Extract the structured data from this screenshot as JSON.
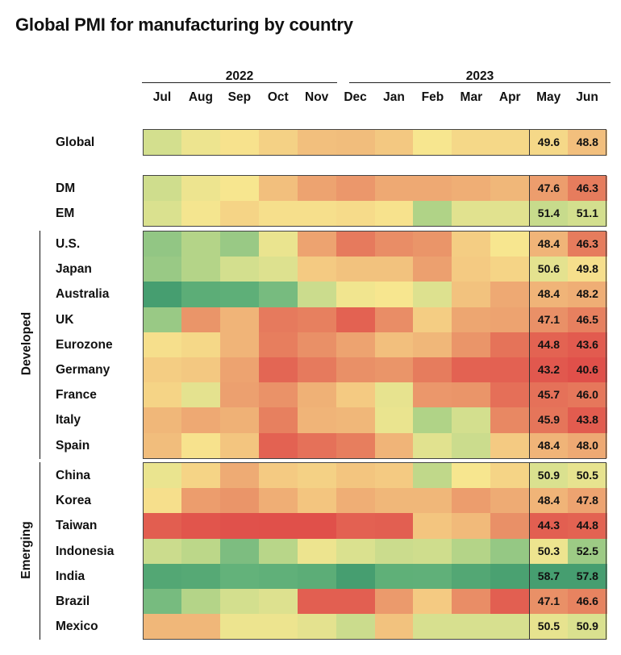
{
  "chart_data": {
    "type": "heatmap",
    "title": "Global PMI for manufacturing by country",
    "year_headers": [
      {
        "label": "2022",
        "months": [
          "Jul",
          "Aug",
          "Sep",
          "Oct",
          "Nov",
          "Dec"
        ]
      },
      {
        "label": "2023",
        "months": [
          "Jan",
          "Feb",
          "Mar",
          "Apr",
          "May",
          "Jun"
        ]
      }
    ],
    "columns": [
      "Jul",
      "Aug",
      "Sep",
      "Oct",
      "Nov",
      "Dec",
      "Jan",
      "Feb",
      "Mar",
      "Apr",
      "May",
      "Jun"
    ],
    "labeled_columns": [
      "May",
      "Jun"
    ],
    "color_scale": {
      "low": "#e0504a",
      "mid": "#f7e68f",
      "high": "#469e70",
      "stops": [
        {
          "value": 42.0,
          "color": "#e0504a"
        },
        {
          "value": 45.0,
          "color": "#e36453"
        },
        {
          "value": 46.5,
          "color": "#e7805f"
        },
        {
          "value": 47.5,
          "color": "#eb9a6c"
        },
        {
          "value": 48.5,
          "color": "#f0b779"
        },
        {
          "value": 49.3,
          "color": "#f4cd83"
        },
        {
          "value": 50.0,
          "color": "#f7e68f"
        },
        {
          "value": 51.0,
          "color": "#d7e08f"
        },
        {
          "value": 52.0,
          "color": "#b0d387"
        },
        {
          "value": 53.0,
          "color": "#8ac383"
        },
        {
          "value": 55.0,
          "color": "#64b37a"
        },
        {
          "value": 57.5,
          "color": "#469e70"
        }
      ]
    },
    "groups": [
      {
        "name": "",
        "rows": [
          {
            "label": "Global",
            "values": [
              51.1,
              50.3,
              49.9,
              49.4,
              48.8,
              48.7,
              49.1,
              50.0,
              49.6,
              49.6,
              49.6,
              48.8
            ]
          }
        ]
      },
      {
        "name": "",
        "rows": [
          {
            "label": "DM",
            "values": [
              51.2,
              50.3,
              50.0,
              48.8,
              47.8,
              47.4,
              48.0,
              48.0,
              48.2,
              48.5,
              47.6,
              46.3
            ]
          },
          {
            "label": "EM",
            "values": [
              50.9,
              50.1,
              49.5,
              49.8,
              49.8,
              49.7,
              49.9,
              52.0,
              50.7,
              50.7,
              51.4,
              51.1
            ]
          }
        ]
      },
      {
        "name": "Developed",
        "rows": [
          {
            "label": "U.S.",
            "values": [
              52.8,
              51.9,
              52.6,
              50.4,
              47.8,
              46.2,
              47.0,
              47.3,
              49.3,
              50.0,
              48.4,
              46.3
            ]
          },
          {
            "label": "Japan",
            "values": [
              52.6,
              51.9,
              51.1,
              50.8,
              49.2,
              48.9,
              48.9,
              47.7,
              49.2,
              49.5,
              50.6,
              49.8
            ]
          },
          {
            "label": "Australia",
            "values": [
              57.8,
              55.7,
              55.5,
              54.0,
              51.3,
              50.2,
              50.0,
              50.8,
              48.9,
              48.0,
              48.4,
              48.2
            ]
          },
          {
            "label": "UK",
            "values": [
              52.6,
              47.3,
              48.4,
              46.2,
              46.5,
              44.7,
              47.0,
              49.3,
              47.9,
              47.8,
              47.1,
              46.5
            ]
          },
          {
            "label": "Eurozone",
            "values": [
              49.8,
              49.6,
              48.4,
              46.4,
              47.1,
              47.8,
              48.8,
              48.5,
              47.3,
              45.8,
              44.8,
              43.6
            ]
          },
          {
            "label": "Germany",
            "values": [
              49.3,
              49.1,
              47.8,
              45.1,
              46.2,
              47.1,
              47.3,
              46.3,
              44.7,
              44.5,
              43.2,
              40.6
            ]
          },
          {
            "label": "France",
            "values": [
              49.5,
              50.6,
              47.7,
              47.2,
              48.3,
              49.2,
              50.5,
              47.4,
              47.3,
              45.6,
              45.7,
              46.0
            ]
          },
          {
            "label": "Italy",
            "values": [
              48.5,
              48.0,
              48.3,
              46.5,
              48.4,
              48.5,
              50.4,
              52.0,
              51.1,
              46.8,
              45.9,
              43.8
            ]
          },
          {
            "label": "Spain",
            "values": [
              48.7,
              49.9,
              49.0,
              44.7,
              45.7,
              46.4,
              48.4,
              50.7,
              51.3,
              49.2,
              48.4,
              48.0
            ]
          }
        ]
      },
      {
        "name": "Emerging",
        "rows": [
          {
            "label": "China",
            "values": [
              50.4,
              49.5,
              48.1,
              49.2,
              49.4,
              49.0,
              49.2,
              51.6,
              50.0,
              49.5,
              50.9,
              50.5
            ]
          },
          {
            "label": "Korea",
            "values": [
              49.8,
              47.6,
              47.3,
              48.2,
              49.0,
              48.2,
              48.5,
              48.5,
              47.6,
              48.1,
              48.4,
              47.8
            ]
          },
          {
            "label": "Taiwan",
            "values": [
              44.1,
              42.7,
              42.2,
              41.5,
              41.6,
              44.6,
              44.3,
              49.0,
              48.6,
              47.1,
              44.3,
              44.8
            ]
          },
          {
            "label": "Indonesia",
            "values": [
              51.3,
              51.7,
              53.7,
              51.8,
              50.3,
              50.9,
              51.3,
              51.2,
              51.9,
              52.7,
              50.3,
              52.5
            ]
          },
          {
            "label": "India",
            "values": [
              56.4,
              56.2,
              55.1,
              55.3,
              55.7,
              57.8,
              55.4,
              55.3,
              56.4,
              57.2,
              58.7,
              57.8
            ]
          },
          {
            "label": "Brazil",
            "values": [
              54.0,
              51.9,
              51.1,
              50.8,
              44.3,
              44.2,
              47.5,
              49.2,
              47.0,
              44.3,
              47.1,
              46.6
            ]
          },
          {
            "label": "Mexico",
            "values": [
              48.5,
              48.5,
              50.3,
              50.3,
              50.6,
              51.3,
              48.9,
              51.0,
              51.0,
              51.0,
              50.5,
              50.9
            ]
          }
        ]
      }
    ]
  }
}
